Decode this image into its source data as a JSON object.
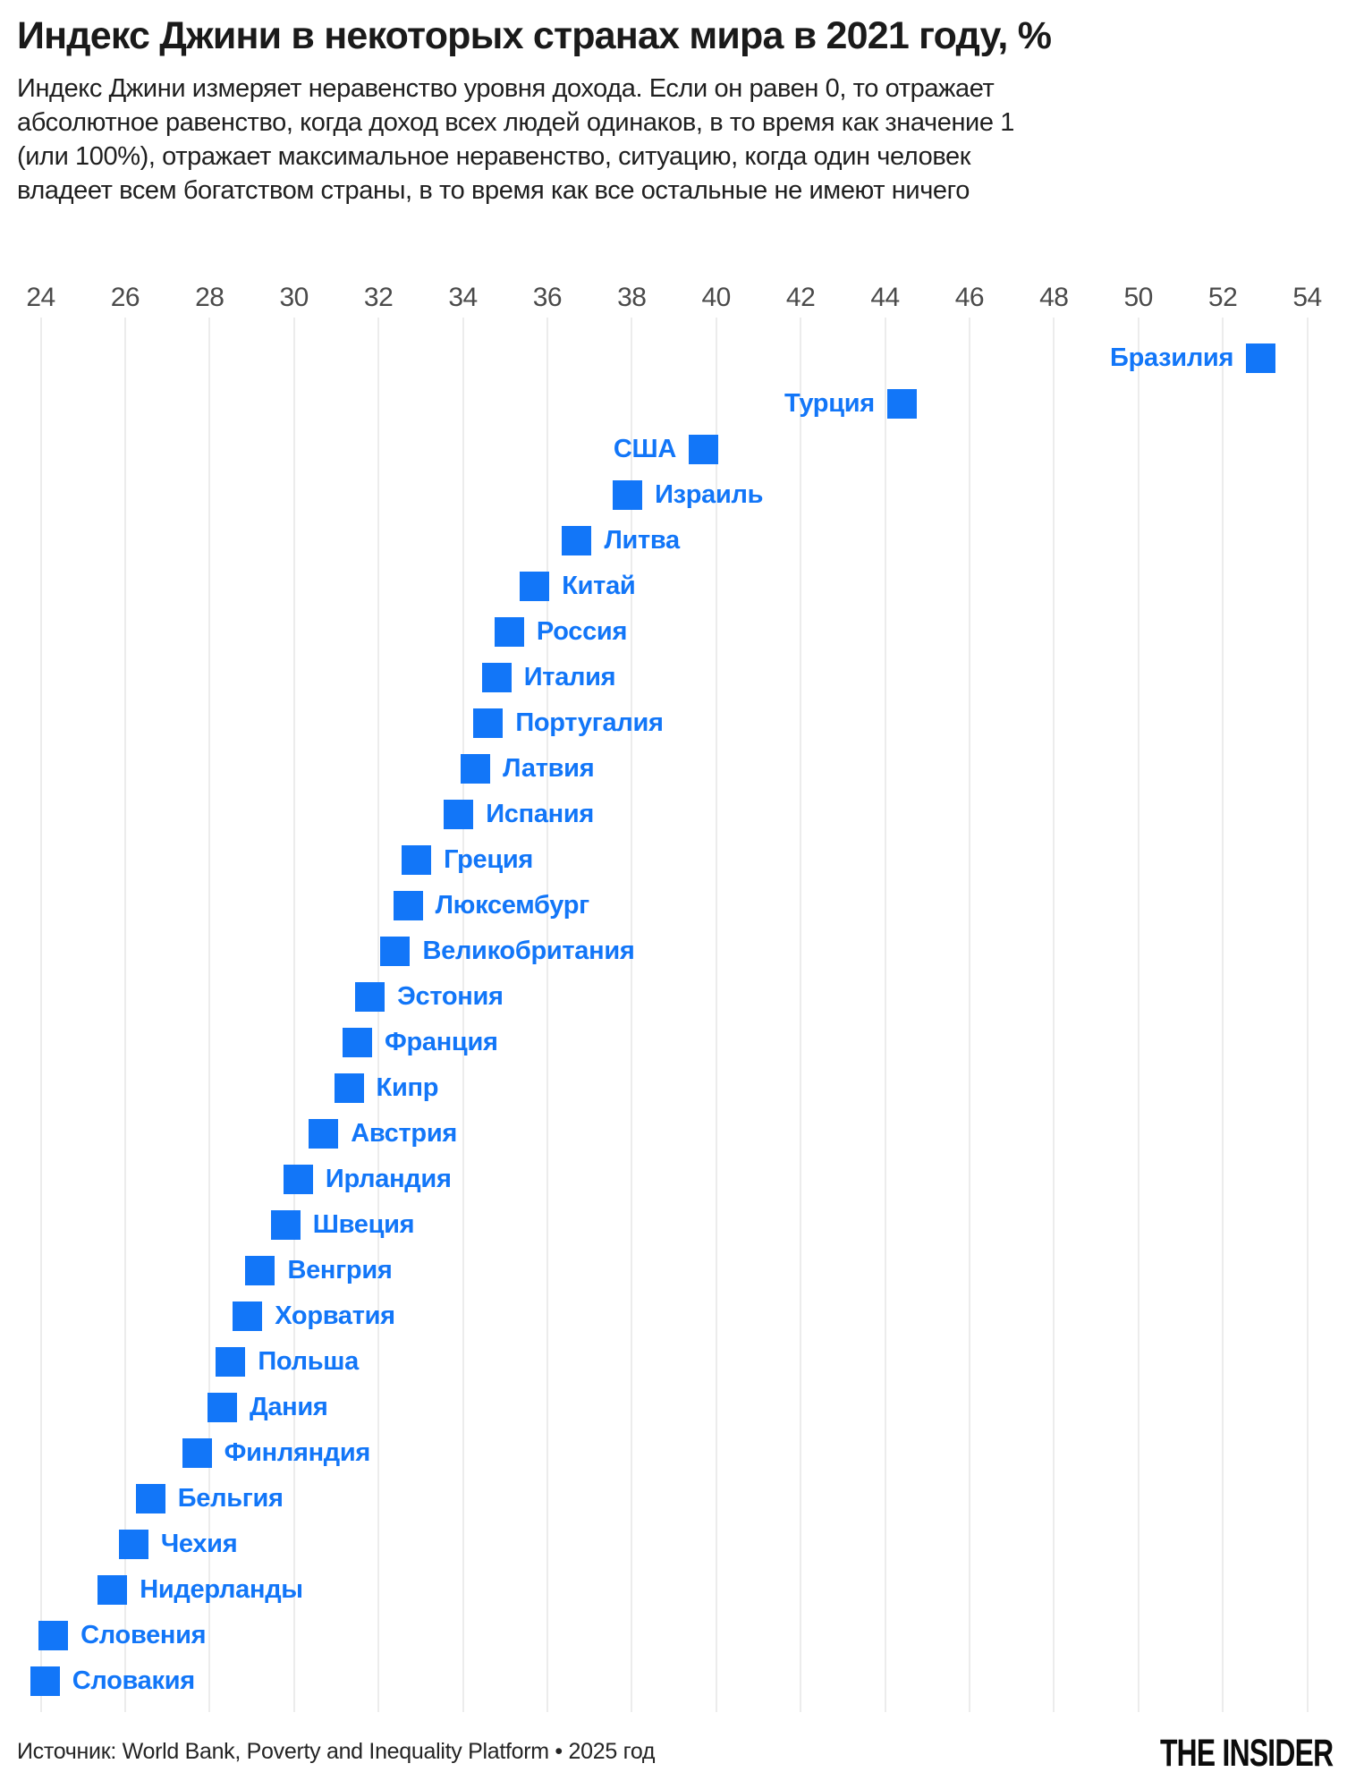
{
  "title": "Индекс Джини в некоторых странах мира в 2021 году, %",
  "subtitle_lines": [
    "Индекс Джини измеряет неравенство уровня дохода. Если он равен 0, то отражает",
    "абсолютное равенство, когда доход всех людей одинаков, в то время как значение 1",
    "(или 100%), отражает максимальное неравенство, ситуацию, когда один человек",
    "владеет всем богатством страны, в то время как все остальные не имеют ничего"
  ],
  "chart_data": {
    "type": "scatter",
    "title": "Индекс Джини в некоторых странах мира в 2021 году, %",
    "marker": "square",
    "grid": "vertical",
    "xlim": [
      24,
      54
    ],
    "xticks": [
      24,
      26,
      28,
      30,
      32,
      34,
      36,
      38,
      40,
      42,
      44,
      46,
      48,
      50,
      52,
      54
    ],
    "categories": [
      "Бразилия",
      "Турция",
      "США",
      "Израиль",
      "Литва",
      "Китай",
      "Россия",
      "Италия",
      "Португалия",
      "Латвия",
      "Испания",
      "Греция",
      "Люксембург",
      "Великобритания",
      "Эстония",
      "Франция",
      "Кипр",
      "Австрия",
      "Ирландия",
      "Швеция",
      "Венгрия",
      "Хорватия",
      "Польша",
      "Дания",
      "Финляндия",
      "Бельгия",
      "Чехия",
      "Нидерланды",
      "Словения",
      "Словакия"
    ],
    "values": [
      52.9,
      44.4,
      39.7,
      37.9,
      36.7,
      35.7,
      35.1,
      34.8,
      34.6,
      34.3,
      33.9,
      32.9,
      32.7,
      32.4,
      31.8,
      31.5,
      31.3,
      30.7,
      30.1,
      29.8,
      29.2,
      28.9,
      28.5,
      28.3,
      27.7,
      26.6,
      26.2,
      25.7,
      24.3,
      24.1
    ],
    "labels_on_left": 3
  },
  "footer": {
    "source": "Источник: World Bank, Poverty and Inequality Platform • 2025 год",
    "logo": "THE INSIDER"
  },
  "colors": {
    "accent_blue": "#1276f8",
    "grid": "#ececec",
    "axis_text": "#4a4a4a",
    "title_text": "#1a1a1a",
    "footer_text": "#242424",
    "logo_black": "#0b0b0b",
    "background": "#ffffff"
  }
}
